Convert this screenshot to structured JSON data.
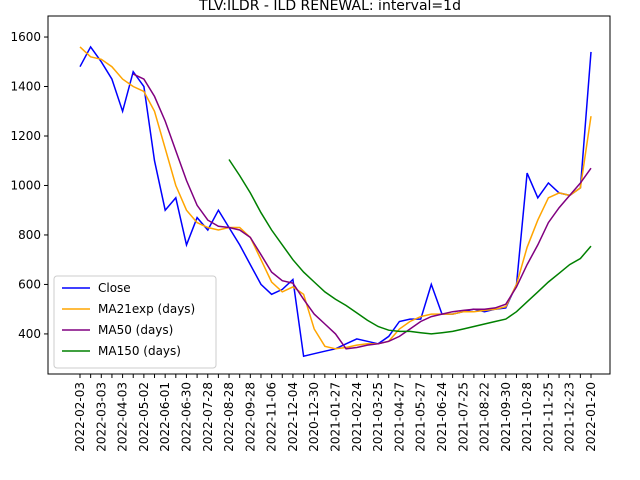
{
  "chart_data": {
    "type": "line",
    "title": "TLV:ILDR - ILD RENEWAL: interval=1d",
    "categories": [
      "2022-02-03",
      null,
      "2022-03-03",
      null,
      "2022-04-03",
      null,
      "2022-05-02",
      null,
      "2022-06-01",
      null,
      "2022-06-30",
      null,
      "2022-07-28",
      null,
      "2022-08-28",
      null,
      "2022-09-28",
      null,
      "2022-11-06",
      null,
      "2022-12-04",
      null,
      "2020-12-30",
      null,
      "2021-01-27",
      null,
      "2021-02-24",
      null,
      "2021-03-25",
      null,
      "2021-04-27",
      null,
      "2021-05-27",
      null,
      "2021-06-24",
      null,
      "2021-07-25",
      null,
      "2021-08-22",
      null,
      "2021-09-30",
      null,
      "2021-10-28",
      null,
      "2021-11-25",
      null,
      "2021-12-23",
      null,
      "2022-01-20"
    ],
    "series": [
      {
        "name": "Close",
        "color": "#0000ff",
        "values": [
          1480,
          1560,
          1500,
          1430,
          1300,
          1460,
          1400,
          1100,
          900,
          950,
          760,
          870,
          820,
          900,
          830,
          760,
          680,
          600,
          560,
          580,
          620,
          310,
          320,
          330,
          340,
          360,
          380,
          370,
          360,
          390,
          450,
          460,
          460,
          600,
          480,
          480,
          490,
          500,
          490,
          500,
          505,
          600,
          1050,
          950,
          1010,
          970,
          960,
          990,
          1540
        ]
      },
      {
        "name": "MA21exp (days)",
        "color": "#ffa500",
        "values": [
          1560,
          1520,
          1510,
          1480,
          1430,
          1400,
          1380,
          1300,
          1150,
          1000,
          900,
          850,
          830,
          820,
          830,
          830,
          790,
          700,
          610,
          570,
          590,
          560,
          420,
          350,
          340,
          345,
          355,
          360,
          360,
          370,
          420,
          450,
          470,
          480,
          480,
          480,
          490,
          490,
          495,
          500,
          510,
          600,
          750,
          860,
          950,
          970,
          960,
          990,
          1280
        ]
      },
      {
        "name": "MA50 (days)",
        "color": "#800080",
        "values": [
          null,
          null,
          null,
          null,
          null,
          1450,
          1430,
          1360,
          1260,
          1140,
          1020,
          920,
          860,
          835,
          830,
          820,
          790,
          720,
          650,
          615,
          605,
          540,
          480,
          440,
          400,
          340,
          345,
          355,
          360,
          370,
          390,
          420,
          450,
          470,
          480,
          490,
          495,
          500,
          500,
          505,
          520,
          590,
          680,
          760,
          850,
          910,
          960,
          1010,
          1070
        ]
      },
      {
        "name": "MA150 (days)",
        "color": "#008000",
        "values": [
          null,
          null,
          null,
          null,
          null,
          null,
          null,
          null,
          null,
          null,
          null,
          null,
          null,
          null,
          1105,
          1040,
          970,
          890,
          820,
          760,
          700,
          650,
          610,
          570,
          540,
          515,
          485,
          455,
          430,
          415,
          410,
          410,
          405,
          400,
          405,
          410,
          420,
          430,
          440,
          450,
          460,
          490,
          530,
          570,
          610,
          645,
          680,
          705,
          755
        ]
      }
    ],
    "ylim": [
      238,
      1685
    ],
    "yticks": [
      400,
      600,
      800,
      1000,
      1200,
      1400,
      1600
    ],
    "legend": "lower left"
  }
}
